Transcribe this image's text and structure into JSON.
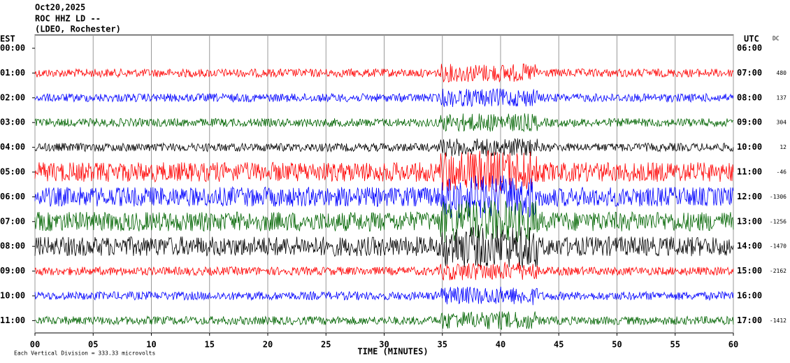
{
  "chart_data": {
    "type": "helicorder",
    "title_lines": [
      "Oct20,2025",
      "ROC HHZ LD --",
      "(LDEO, Rochester)"
    ],
    "left_axis_label": "EST",
    "right_axis_label": "UTC",
    "dc_label": "DC",
    "rows": [
      "00:00",
      "01:00",
      "02:00",
      "03:00",
      "04:00",
      "05:00",
      "06:00",
      "07:00",
      "08:00",
      "09:00",
      "10:00",
      "11:00"
    ],
    "utc_rows": [
      "06:00",
      "07:00",
      "08:00",
      "09:00",
      "10:00",
      "11:00",
      "12:00",
      "13:00",
      "14:00",
      "15:00",
      "16:00",
      "17:00"
    ],
    "dc": [
      null,
      480,
      137,
      304,
      12,
      -46,
      -1306,
      -1256,
      -1470,
      -2162,
      null,
      -1412
    ],
    "colors": [
      null,
      "#ff0000",
      "#0000ff",
      "#006400",
      "#000000",
      "#ff0000",
      "#0000ff",
      "#006400",
      "#000000",
      "#ff0000",
      "#0000ff",
      "#006400"
    ],
    "x_label": "TIME (MINUTES)",
    "xlim": [
      0,
      60
    ],
    "xticks": [
      {
        "value": 0,
        "label": "00"
      },
      {
        "value": 5,
        "label": "05"
      },
      10,
      15,
      20,
      25,
      30,
      35,
      40,
      45,
      50,
      55,
      60
    ],
    "grid": true,
    "scale_note": "Each Vertical Division =  333.33 microvolts"
  }
}
